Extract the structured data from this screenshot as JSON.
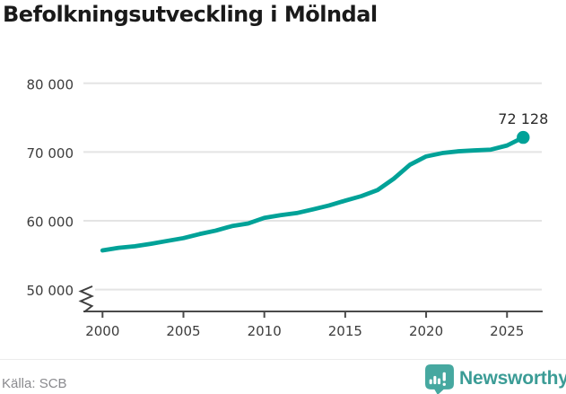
{
  "title": "Befolkningsutveckling i Mölndal",
  "source": "Källa: SCB",
  "branding": {
    "name": "Newsworthy",
    "icon": "newsworthy-bars-icon",
    "text_color": "#3b9c96",
    "icon_bg_color": "#46a8a0"
  },
  "chart_data": {
    "type": "line",
    "title": "Befolkningsutveckling i Mölndal",
    "x": [
      2000,
      2001,
      2002,
      2003,
      2004,
      2005,
      2006,
      2007,
      2008,
      2009,
      2010,
      2011,
      2012,
      2013,
      2014,
      2015,
      2016,
      2017,
      2018,
      2019,
      2020,
      2021,
      2022,
      2023,
      2024,
      2025,
      2026
    ],
    "values": [
      55690,
      56070,
      56290,
      56660,
      57070,
      57480,
      58070,
      58570,
      59230,
      59610,
      60430,
      60810,
      61120,
      61660,
      62230,
      62930,
      63590,
      64470,
      66120,
      68150,
      69360,
      69850,
      70110,
      70240,
      70350,
      70950,
      72128
    ],
    "end_label": "72 128",
    "end_value": 72128,
    "xlabel": "",
    "ylabel": "",
    "x_ticks": [
      2000,
      2005,
      2010,
      2015,
      2020,
      2025
    ],
    "x_tick_labels": [
      "2000",
      "2005",
      "2010",
      "2015",
      "2020",
      "2025"
    ],
    "y_ticks": [
      50000,
      60000,
      70000,
      80000
    ],
    "y_tick_labels": [
      "50 000",
      "60 000",
      "70 000",
      "80 000"
    ],
    "ylim": [
      50000,
      80000
    ],
    "axis_break": true,
    "grid": true,
    "legend": "none",
    "line_color": "#00a298"
  }
}
